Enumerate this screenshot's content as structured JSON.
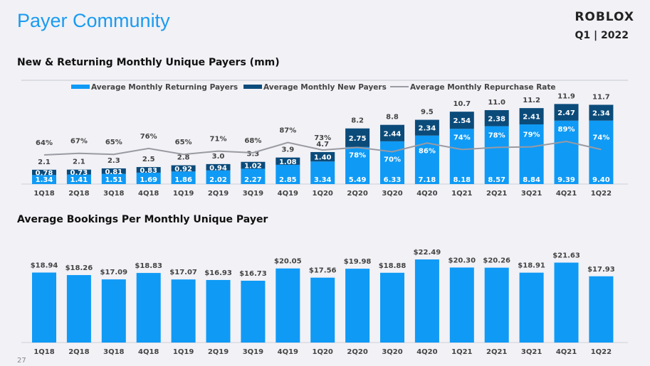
{
  "header": {
    "title": "Payer Community",
    "logo": "ROBLOX",
    "period": "Q1 | 2022"
  },
  "page_number": "27",
  "chart_data": [
    {
      "type": "bar",
      "stacked": true,
      "title": "New & Returning Monthly Unique Payers (mm)",
      "categories": [
        "1Q18",
        "2Q18",
        "3Q18",
        "4Q18",
        "1Q19",
        "2Q19",
        "3Q19",
        "4Q19",
        "1Q20",
        "2Q20",
        "3Q20",
        "4Q20",
        "1Q21",
        "2Q21",
        "3Q21",
        "4Q21",
        "1Q22"
      ],
      "legend": [
        "Average Monthly Returning Payers",
        "Average Monthly New Payers",
        "Average Monthly Repurchase Rate"
      ],
      "legend_position": "top",
      "series": [
        {
          "name": "Average Monthly Returning Payers",
          "color": "#0f9af5",
          "values": [
            "1.34",
            "1.41",
            "1.51",
            "1.69",
            "1.86",
            "2.02",
            "2.27",
            "2.85",
            "3.34",
            "5.49",
            "6.33",
            "7.18",
            "8.18",
            "8.57",
            "8.84",
            "9.39",
            "9.40"
          ]
        },
        {
          "name": "Average Monthly New Payers",
          "color": "#0b4b7a",
          "values": [
            "0.78",
            "0.73",
            "0.81",
            "0.83",
            "0.92",
            "0.94",
            "1.02",
            "1.08",
            "1.40",
            "2.75",
            "2.44",
            "2.34",
            "2.54",
            "2.38",
            "2.41",
            "2.47",
            "2.34"
          ]
        },
        {
          "name": "Average Monthly Repurchase Rate",
          "type": "line",
          "color": "#9a9aa2",
          "values": [
            "64%",
            "67%",
            "65%",
            "76%",
            "65%",
            "71%",
            "68%",
            "87%",
            "73%",
            "78%",
            "70%",
            "86%",
            "74%",
            "78%",
            "79%",
            "89%",
            "74%"
          ]
        }
      ],
      "totals": [
        "2.1",
        "2.1",
        "2.3",
        "2.5",
        "2.8",
        "3.0",
        "3.3",
        "3.9",
        "4.7",
        "8.2",
        "8.8",
        "9.5",
        "10.7",
        "11.0",
        "11.2",
        "11.9",
        "11.7"
      ]
    },
    {
      "type": "bar",
      "title": "Average Bookings Per Monthly Unique Payer",
      "categories": [
        "1Q18",
        "2Q18",
        "3Q18",
        "4Q18",
        "1Q19",
        "2Q19",
        "3Q19",
        "4Q19",
        "1Q20",
        "2Q20",
        "3Q20",
        "4Q20",
        "1Q21",
        "2Q21",
        "3Q21",
        "4Q21",
        "1Q22"
      ],
      "color": "#0f9af5",
      "values": [
        18.94,
        18.26,
        17.09,
        18.83,
        17.07,
        16.93,
        16.73,
        20.05,
        17.56,
        19.98,
        18.88,
        22.49,
        20.3,
        20.26,
        18.91,
        21.63,
        17.93
      ],
      "labels": [
        "$18.94",
        "$18.26",
        "$17.09",
        "$18.83",
        "$17.07",
        "$16.93",
        "$16.73",
        "$20.05",
        "$17.56",
        "$19.98",
        "$18.88",
        "$22.49",
        "$20.30",
        "$20.26",
        "$18.91",
        "$21.63",
        "$17.93"
      ]
    }
  ]
}
